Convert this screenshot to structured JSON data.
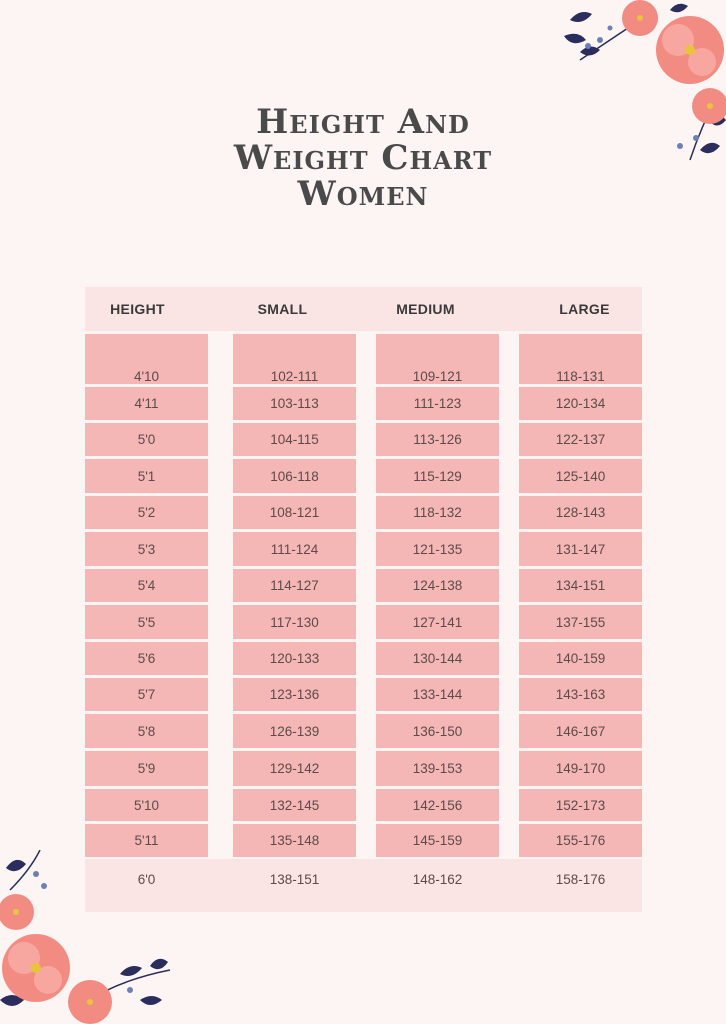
{
  "title": {
    "line1": "Height And",
    "line2": "Weight Chart",
    "line3": "Women"
  },
  "table": {
    "headers": [
      "HEIGHT",
      "SMALL",
      "MEDIUM",
      "LARGE"
    ],
    "rows": [
      [
        "4'10",
        "102-111",
        "109-121",
        "118-131"
      ],
      [
        "4'11",
        "103-113",
        "111-123",
        "120-134"
      ],
      [
        "5'0",
        "104-115",
        "113-126",
        "122-137"
      ],
      [
        "5'1",
        "106-118",
        "115-129",
        "125-140"
      ],
      [
        "5'2",
        "108-121",
        "118-132",
        "128-143"
      ],
      [
        "5'3",
        "111-124",
        "121-135",
        "131-147"
      ],
      [
        "5'4",
        "114-127",
        "124-138",
        "134-151"
      ],
      [
        "5'5",
        "117-130",
        "127-141",
        "137-155"
      ],
      [
        "5'6",
        "120-133",
        "130-144",
        "140-159"
      ],
      [
        "5'7",
        "123-136",
        "133-144",
        "143-163"
      ],
      [
        "5'8",
        "126-139",
        "136-150",
        "146-167"
      ],
      [
        "5'9",
        "129-142",
        "139-153",
        "149-170"
      ],
      [
        "5'10",
        "132-145",
        "142-156",
        "152-173"
      ],
      [
        "5'11",
        "135-148",
        "145-159",
        "155-176"
      ],
      [
        "6'0",
        "138-151",
        "148-162",
        "158-176"
      ]
    ]
  },
  "colors": {
    "background": "#fdf5f3",
    "cell": "#f4b7b5",
    "header_band": "#fbe4e4",
    "flower": "#f28b82",
    "leaf": "#2b2d5c"
  },
  "decor": {
    "top_right": "floral-corner-icon",
    "bottom_left": "floral-corner-icon"
  }
}
